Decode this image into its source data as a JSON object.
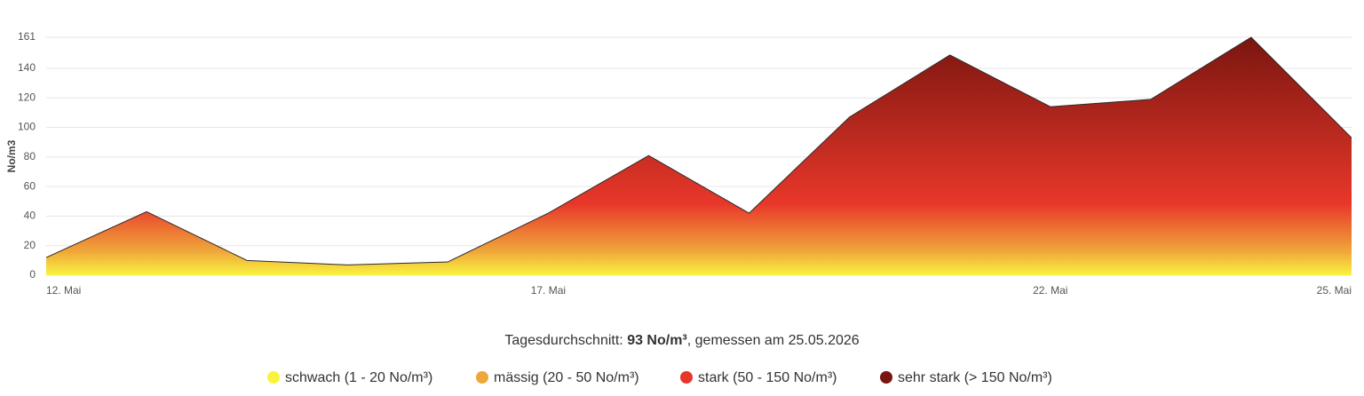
{
  "chart_data": {
    "type": "area",
    "y_label": "No/m3",
    "categories": [
      "12. Mai",
      null,
      null,
      null,
      null,
      "17. Mai",
      null,
      null,
      null,
      null,
      "22. Mai",
      null,
      null,
      "25. Mai"
    ],
    "values": [
      12,
      43,
      10,
      7,
      9,
      42,
      81,
      42,
      107,
      149,
      114,
      119,
      161,
      93
    ],
    "line_color": "#2b2b2b",
    "ylim": [
      0,
      161
    ],
    "yticks": [
      0,
      20,
      40,
      60,
      80,
      100,
      120,
      140,
      161
    ],
    "grid": true,
    "footer": {
      "prefix": "Tagesdurchschnitt: ",
      "value": "93 No/m³",
      "suffix": ", gemessen am 25.05.2026"
    },
    "legend": [
      {
        "name": "schwach (1 - 20 No/m³)",
        "color": "#f9f33f"
      },
      {
        "name": "mässig (20 - 50 No/m³)",
        "color": "#f0a73a"
      },
      {
        "name": "stark (50 - 150 No/m³)",
        "color": "#e8372a"
      },
      {
        "name": "sehr stark (> 150 No/m³)",
        "color": "#7a1610"
      }
    ]
  }
}
